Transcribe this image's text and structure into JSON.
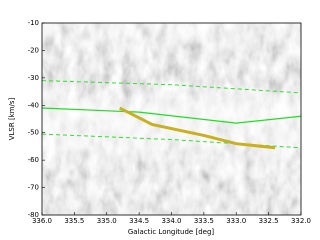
{
  "chart_data": {
    "type": "line",
    "x_label": "Galactic Longitude [deg]",
    "y_label": "VLSR [km/s]",
    "xlim": [
      336.0,
      332.0
    ],
    "ylim": [
      -80,
      -10
    ],
    "xticks": [
      {
        "value": 336.0,
        "label": "336.0"
      },
      335.5,
      {
        "value": 335.0,
        "label": "335.0"
      },
      334.5,
      {
        "value": 334.0,
        "label": "334.0"
      },
      333.5,
      {
        "value": 333.0,
        "label": "333.0"
      },
      332.5,
      {
        "value": 332.0,
        "label": "332.0"
      }
    ],
    "yticks": [
      -10,
      -20,
      -30,
      -40,
      -50,
      -60,
      -70,
      -80
    ],
    "series": [
      {
        "color": "#33dd33",
        "style": "dashed",
        "width": 1,
        "x": [
          336.0,
          334.0,
          332.0
        ],
        "y": [
          -31,
          -32.5,
          -35.5
        ]
      },
      {
        "color": "#33dd33",
        "style": "dashed",
        "width": 1,
        "x": [
          336.0,
          334.0,
          332.0
        ],
        "y": [
          -50.5,
          -52.5,
          -55.5
        ]
      },
      {
        "color": "#22dd22",
        "style": "solid",
        "width": 1.2,
        "x": [
          336.0,
          334.5,
          333.0,
          332.0
        ],
        "y": [
          -41,
          -42.5,
          -46.5,
          -44
        ]
      },
      {
        "color": "#c8b020",
        "style": "solid",
        "width": 3,
        "x": [
          334.8,
          334.3,
          333.5,
          333.0,
          332.4
        ],
        "y": [
          -41,
          -47,
          -51,
          -54,
          -55.5
        ]
      }
    ]
  }
}
